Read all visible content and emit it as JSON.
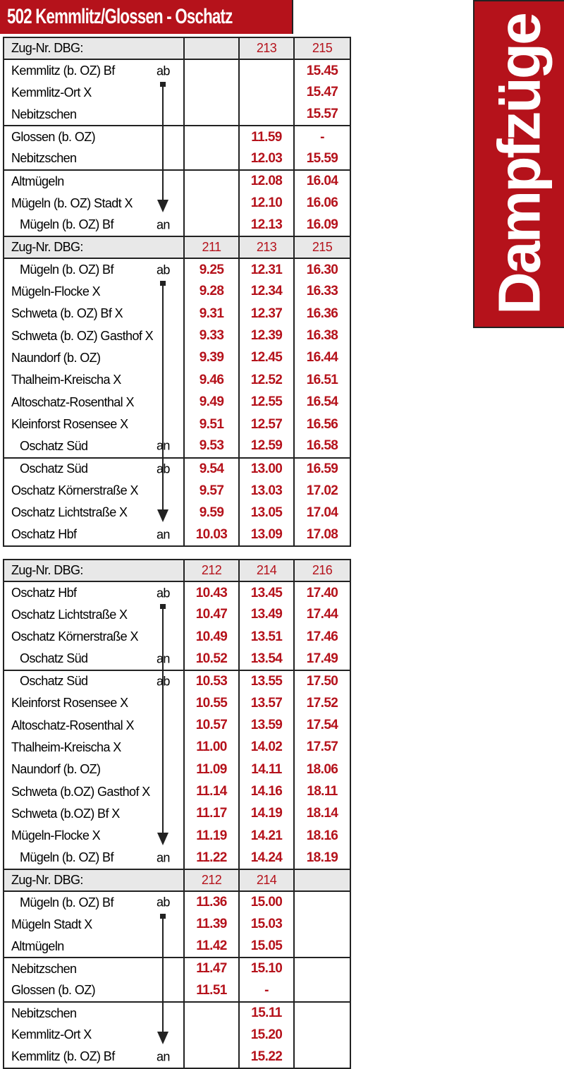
{
  "title": "502 Kemmlitz/Glossen - Oschatz",
  "banner": "Dampfzüge",
  "colors": {
    "accent": "#b5121b",
    "header_bg": "#e8e8e8"
  },
  "header_label": "Zug-Nr. DBG:",
  "tables": [
    {
      "blocks": [
        {
          "trains": [
            "",
            "213",
            "215"
          ],
          "groups": [
            [
              {
                "station": "Kemmlitz (b. OZ) Bf",
                "type": "ab",
                "times": [
                  "",
                  "",
                  "15.45"
                ]
              },
              {
                "station": "Kemmlitz-Ort X",
                "type": "",
                "times": [
                  "",
                  "",
                  "15.47"
                ]
              },
              {
                "station": "Nebitzschen",
                "type": "",
                "times": [
                  "",
                  "",
                  "15.57"
                ]
              }
            ],
            [
              {
                "station": "Glossen (b. OZ)",
                "type": "",
                "times": [
                  "",
                  "11.59",
                  "-"
                ]
              },
              {
                "station": "Nebitzschen",
                "type": "",
                "times": [
                  "",
                  "12.03",
                  "15.59"
                ]
              }
            ],
            [
              {
                "station": "Altmügeln",
                "type": "",
                "times": [
                  "",
                  "12.08",
                  "16.04"
                ]
              },
              {
                "station": "Mügeln (b. OZ) Stadt X",
                "type": "",
                "times": [
                  "",
                  "12.10",
                  "16.06"
                ]
              },
              {
                "station": "Mügeln (b. OZ) Bf",
                "type": "an",
                "indent": true,
                "times": [
                  "",
                  "12.13",
                  "16.09"
                ]
              }
            ]
          ]
        },
        {
          "trains": [
            "211",
            "213",
            "215"
          ],
          "groups": [
            [
              {
                "station": "Mügeln (b. OZ) Bf",
                "type": "ab",
                "indent": true,
                "times": [
                  "9.25",
                  "12.31",
                  "16.30"
                ]
              },
              {
                "station": "Mügeln-Flocke X",
                "type": "",
                "times": [
                  "9.28",
                  "12.34",
                  "16.33"
                ]
              },
              {
                "station": "Schweta (b. OZ) Bf X",
                "type": "",
                "times": [
                  "9.31",
                  "12.37",
                  "16.36"
                ]
              },
              {
                "station": "Schweta (b. OZ) Gasthof X",
                "type": "",
                "times": [
                  "9.33",
                  "12.39",
                  "16.38"
                ]
              },
              {
                "station": "Naundorf (b. OZ)",
                "type": "",
                "times": [
                  "9.39",
                  "12.45",
                  "16.44"
                ]
              },
              {
                "station": "Thalheim-Kreischa X",
                "type": "",
                "times": [
                  "9.46",
                  "12.52",
                  "16.51"
                ]
              },
              {
                "station": "Altoschatz-Rosenthal X",
                "type": "",
                "times": [
                  "9.49",
                  "12.55",
                  "16.54"
                ]
              },
              {
                "station": "Kleinforst Rosensee X",
                "type": "",
                "times": [
                  "9.51",
                  "12.57",
                  "16.56"
                ]
              },
              {
                "station": "Oschatz Süd",
                "type": "an",
                "indent": true,
                "times": [
                  "9.53",
                  "12.59",
                  "16.58"
                ]
              }
            ],
            [
              {
                "station": "Oschatz Süd",
                "type": "ab",
                "indent": true,
                "times": [
                  "9.54",
                  "13.00",
                  "16.59"
                ]
              },
              {
                "station": "Oschatz Körnerstraße X",
                "type": "",
                "times": [
                  "9.57",
                  "13.03",
                  "17.02"
                ]
              },
              {
                "station": "Oschatz Lichtstraße X",
                "type": "",
                "times": [
                  "9.59",
                  "13.05",
                  "17.04"
                ]
              },
              {
                "station": "Oschatz Hbf",
                "type": "an",
                "times": [
                  "10.03",
                  "13.09",
                  "17.08"
                ]
              }
            ]
          ]
        }
      ]
    },
    {
      "blocks": [
        {
          "trains": [
            "212",
            "214",
            "216"
          ],
          "groups": [
            [
              {
                "station": "Oschatz Hbf",
                "type": "ab",
                "times": [
                  "10.43",
                  "13.45",
                  "17.40"
                ]
              },
              {
                "station": "Oschatz Lichtstraße X",
                "type": "",
                "times": [
                  "10.47",
                  "13.49",
                  "17.44"
                ]
              },
              {
                "station": "Oschatz Körnerstraße X",
                "type": "",
                "times": [
                  "10.49",
                  "13.51",
                  "17.46"
                ]
              },
              {
                "station": "Oschatz Süd",
                "type": "an",
                "indent": true,
                "times": [
                  "10.52",
                  "13.54",
                  "17.49"
                ]
              }
            ],
            [
              {
                "station": "Oschatz Süd",
                "type": "ab",
                "indent": true,
                "times": [
                  "10.53",
                  "13.55",
                  "17.50"
                ]
              },
              {
                "station": "Kleinforst Rosensee X",
                "type": "",
                "times": [
                  "10.55",
                  "13.57",
                  "17.52"
                ]
              },
              {
                "station": "Altoschatz-Rosenthal X",
                "type": "",
                "times": [
                  "10.57",
                  "13.59",
                  "17.54"
                ]
              },
              {
                "station": "Thalheim-Kreischa X",
                "type": "",
                "times": [
                  "11.00",
                  "14.02",
                  "17.57"
                ]
              },
              {
                "station": "Naundorf (b. OZ)",
                "type": "",
                "times": [
                  "11.09",
                  "14.11",
                  "18.06"
                ]
              },
              {
                "station": "Schweta (b.OZ) Gasthof X",
                "type": "",
                "times": [
                  "11.14",
                  "14.16",
                  "18.11"
                ]
              },
              {
                "station": "Schweta (b.OZ) Bf X",
                "type": "",
                "times": [
                  "11.17",
                  "14.19",
                  "18.14"
                ]
              },
              {
                "station": "Mügeln-Flocke X",
                "type": "",
                "times": [
                  "11.19",
                  "14.21",
                  "18.16"
                ]
              },
              {
                "station": "Mügeln (b. OZ) Bf",
                "type": "an",
                "indent": true,
                "times": [
                  "11.22",
                  "14.24",
                  "18.19"
                ]
              }
            ]
          ]
        },
        {
          "trains": [
            "212",
            "214",
            ""
          ],
          "groups": [
            [
              {
                "station": "Mügeln (b. OZ) Bf",
                "type": "ab",
                "indent": true,
                "times": [
                  "11.36",
                  "15.00",
                  ""
                ]
              },
              {
                "station": "Mügeln Stadt X",
                "type": "",
                "times": [
                  "11.39",
                  "15.03",
                  ""
                ]
              },
              {
                "station": "Altmügeln",
                "type": "",
                "times": [
                  "11.42",
                  "15.05",
                  ""
                ]
              }
            ],
            [
              {
                "station": "Nebitzschen",
                "type": "",
                "times": [
                  "11.47",
                  "15.10",
                  ""
                ]
              },
              {
                "station": "Glossen (b. OZ)",
                "type": "",
                "times": [
                  "11.51",
                  "-",
                  ""
                ]
              }
            ],
            [
              {
                "station": "Nebitzschen",
                "type": "",
                "times": [
                  "",
                  "15.11",
                  ""
                ]
              },
              {
                "station": "Kemmlitz-Ort X",
                "type": "",
                "times": [
                  "",
                  "15.20",
                  ""
                ]
              },
              {
                "station": "Kemmlitz (b. OZ) Bf",
                "type": "an",
                "times": [
                  "",
                  "15.22",
                  ""
                ]
              }
            ]
          ]
        }
      ]
    }
  ]
}
